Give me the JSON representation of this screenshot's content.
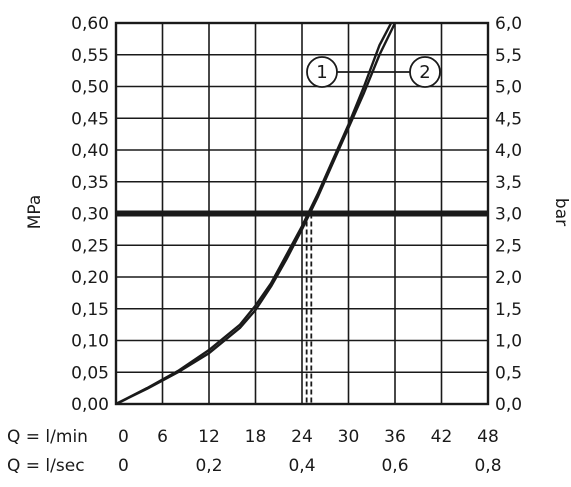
{
  "chart_data": {
    "type": "line",
    "left_axis": {
      "label": "MPa",
      "ylim": [
        0,
        0.6
      ],
      "ticks": [
        "0,00",
        "0,05",
        "0,10",
        "0,15",
        "0,20",
        "0,25",
        "0,30",
        "0,35",
        "0,40",
        "0,45",
        "0,50",
        "0,55",
        "0,60"
      ]
    },
    "right_axis": {
      "label": "bar",
      "ylim": [
        0,
        6
      ],
      "ticks": [
        "0,0",
        "0,5",
        "1,0",
        "1,5",
        "2,0",
        "2,5",
        "3,0",
        "3,5",
        "4,0",
        "4,5",
        "5,0",
        "5,5",
        "6,0"
      ]
    },
    "x_axis_lmin": {
      "label": "Q = l/min",
      "xlim": [
        0,
        48
      ],
      "ticks": [
        "0",
        "6",
        "12",
        "18",
        "24",
        "30",
        "36",
        "42",
        "48"
      ]
    },
    "x_axis_lsec": {
      "label": "Q = l/sec",
      "ticks": [
        {
          "value": 0,
          "text": "0"
        },
        {
          "value": 0.2,
          "text": "0,2"
        },
        {
          "value": 0.4,
          "text": "0,4"
        },
        {
          "value": 0.6,
          "text": "0,6"
        },
        {
          "value": 0.8,
          "text": "0,8"
        }
      ]
    },
    "grid": true,
    "reference_line": {
      "y": 0.3
    },
    "reference_drops": [
      24.6,
      25.2
    ],
    "series": [
      {
        "name": "1",
        "x": [
          0,
          4,
          8,
          12,
          16,
          18,
          20,
          22,
          24,
          26,
          28,
          30,
          32,
          34,
          35.5
        ],
        "y": [
          0,
          0.025,
          0.052,
          0.085,
          0.125,
          0.155,
          0.19,
          0.235,
          0.28,
          0.33,
          0.385,
          0.44,
          0.5,
          0.565,
          0.6
        ]
      },
      {
        "name": "2",
        "x": [
          0,
          4,
          8,
          12,
          16,
          18,
          20,
          22,
          24,
          26,
          28,
          30,
          32,
          34,
          36
        ],
        "y": [
          0,
          0.024,
          0.05,
          0.08,
          0.12,
          0.148,
          0.185,
          0.228,
          0.275,
          0.325,
          0.38,
          0.435,
          0.49,
          0.55,
          0.6
        ]
      }
    ],
    "callouts": [
      {
        "text": "1",
        "series": "1"
      },
      {
        "text": "2",
        "series": "2"
      }
    ],
    "colors": {
      "ink": "#1a1a1a",
      "background": "#ffffff"
    }
  }
}
